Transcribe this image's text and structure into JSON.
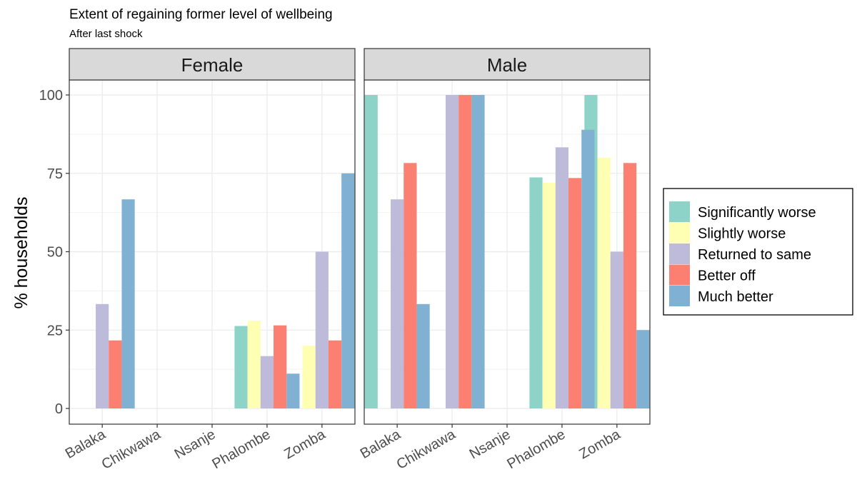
{
  "chart_data": {
    "type": "bar",
    "title": "Extent of regaining former level of wellbeing",
    "subtitle": "After last shock",
    "xlabel": "",
    "ylabel": "% households",
    "ylim": [
      0,
      110
    ],
    "yticks": [
      0,
      25,
      50,
      75,
      100
    ],
    "categories": [
      "Balaka",
      "Chikwawa",
      "Nsanje",
      "Phalombe",
      "Zomba"
    ],
    "grid": true,
    "legend_position": "right",
    "series_colors": [
      "#8dd3c7",
      "#ffffb3",
      "#bebada",
      "#fb8072",
      "#80b1d3"
    ],
    "legend": [
      "Significantly worse",
      "Slightly worse",
      "Returned to same",
      "Better off",
      "Much better"
    ],
    "panels": [
      {
        "label": "Female",
        "series": [
          {
            "name": "Significantly worse",
            "values": [
              null,
              null,
              null,
              26.3,
              null
            ]
          },
          {
            "name": "Slightly worse",
            "values": [
              null,
              null,
              null,
              28,
              20
            ]
          },
          {
            "name": "Returned to same",
            "values": [
              33.3,
              null,
              null,
              16.7,
              50
            ]
          },
          {
            "name": "Better off",
            "values": [
              21.7,
              null,
              null,
              26.5,
              21.7
            ]
          },
          {
            "name": "Much better",
            "values": [
              66.7,
              null,
              null,
              11.1,
              75
            ]
          }
        ]
      },
      {
        "label": "Male",
        "series": [
          {
            "name": "Significantly worse",
            "values": [
              100,
              null,
              null,
              73.7,
              100
            ]
          },
          {
            "name": "Slightly worse",
            "values": [
              null,
              null,
              null,
              72,
              80
            ]
          },
          {
            "name": "Returned to same",
            "values": [
              66.7,
              100,
              null,
              83.3,
              50
            ]
          },
          {
            "name": "Better off",
            "values": [
              78.3,
              100,
              null,
              73.5,
              78.3
            ]
          },
          {
            "name": "Much better",
            "values": [
              33.3,
              100,
              null,
              88.9,
              25
            ]
          }
        ]
      }
    ]
  }
}
